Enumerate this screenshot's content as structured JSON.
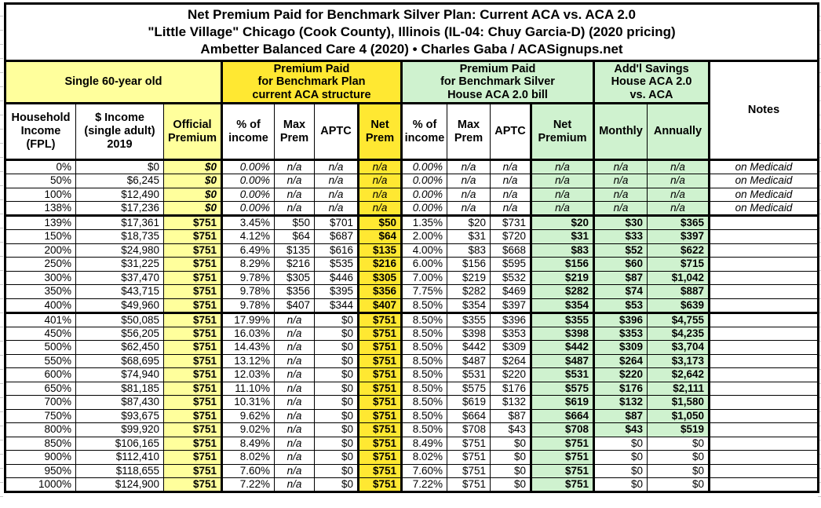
{
  "colors": {
    "pale_yellow": "#ffff9c",
    "bright_yellow": "#ffe832",
    "light_green": "#cff2cf",
    "border_black": "#000000",
    "gridline_gray": "#c9c9c9"
  },
  "chart_data": {
    "type": "table",
    "title_lines": [
      "Net Premium Paid for Benchmark Silver Plan: Current ACA vs. ACA 2.0",
      "\"Little Village\" Chicago (Cook County), Illinois (IL-04: Chuy Garcia-D) (2020 pricing)",
      "Ambetter Balanced Care 4 (2020) • Charles Gaba / ACASignups.net"
    ],
    "group_headers": {
      "subject": "Single 60-year old",
      "aca": "Premium Paid\nfor Benchmark Plan\ncurrent ACA structure",
      "aca2": "Premium Paid\nfor Benchmark Silver\nHouse ACA 2.0 bill",
      "savings": "Add'l Savings\nHouse ACA 2.0\nvs. ACA",
      "notes": "Notes"
    },
    "col_headers": [
      "Household\nIncome\n(FPL)",
      "$ Income\n(single adult)\n2019",
      "Official\nPremium",
      "% of\nincome",
      "Max\nPrem",
      "APTC",
      "Net\nPrem",
      "% of\nincome",
      "Max\nPrem",
      "APTC",
      "Net\nPremium",
      "Monthly",
      "Annually"
    ],
    "rows": [
      [
        "0%",
        "$0",
        "$0",
        "0.00%",
        "n/a",
        "n/a",
        "n/a",
        "0.00%",
        "n/a",
        "n/a",
        "n/a",
        "n/a",
        "n/a",
        "on Medicaid"
      ],
      [
        "50%",
        "$6,245",
        "$0",
        "0.00%",
        "n/a",
        "n/a",
        "n/a",
        "0.00%",
        "n/a",
        "n/a",
        "n/a",
        "n/a",
        "n/a",
        "on Medicaid"
      ],
      [
        "100%",
        "$12,490",
        "$0",
        "0.00%",
        "n/a",
        "n/a",
        "n/a",
        "0.00%",
        "n/a",
        "n/a",
        "n/a",
        "n/a",
        "n/a",
        "on Medicaid"
      ],
      [
        "138%",
        "$17,236",
        "$0",
        "0.00%",
        "n/a",
        "n/a",
        "n/a",
        "0.00%",
        "n/a",
        "n/a",
        "n/a",
        "n/a",
        "n/a",
        "on Medicaid"
      ],
      [
        "139%",
        "$17,361",
        "$751",
        "3.45%",
        "$50",
        "$701",
        "$50",
        "1.35%",
        "$20",
        "$731",
        "$20",
        "$30",
        "$365",
        ""
      ],
      [
        "150%",
        "$18,735",
        "$751",
        "4.12%",
        "$64",
        "$687",
        "$64",
        "2.00%",
        "$31",
        "$720",
        "$31",
        "$33",
        "$397",
        ""
      ],
      [
        "200%",
        "$24,980",
        "$751",
        "6.49%",
        "$135",
        "$616",
        "$135",
        "4.00%",
        "$83",
        "$668",
        "$83",
        "$52",
        "$622",
        ""
      ],
      [
        "250%",
        "$31,225",
        "$751",
        "8.29%",
        "$216",
        "$535",
        "$216",
        "6.00%",
        "$156",
        "$595",
        "$156",
        "$60",
        "$715",
        ""
      ],
      [
        "300%",
        "$37,470",
        "$751",
        "9.78%",
        "$305",
        "$446",
        "$305",
        "7.00%",
        "$219",
        "$532",
        "$219",
        "$87",
        "$1,042",
        ""
      ],
      [
        "350%",
        "$43,715",
        "$751",
        "9.78%",
        "$356",
        "$395",
        "$356",
        "7.75%",
        "$282",
        "$469",
        "$282",
        "$74",
        "$887",
        ""
      ],
      [
        "400%",
        "$49,960",
        "$751",
        "9.78%",
        "$407",
        "$344",
        "$407",
        "8.50%",
        "$354",
        "$397",
        "$354",
        "$53",
        "$639",
        ""
      ],
      [
        "401%",
        "$50,085",
        "$751",
        "17.99%",
        "n/a",
        "$0",
        "$751",
        "8.50%",
        "$355",
        "$396",
        "$355",
        "$396",
        "$4,755",
        ""
      ],
      [
        "450%",
        "$56,205",
        "$751",
        "16.03%",
        "n/a",
        "$0",
        "$751",
        "8.50%",
        "$398",
        "$353",
        "$398",
        "$353",
        "$4,235",
        ""
      ],
      [
        "500%",
        "$62,450",
        "$751",
        "14.43%",
        "n/a",
        "$0",
        "$751",
        "8.50%",
        "$442",
        "$309",
        "$442",
        "$309",
        "$3,704",
        ""
      ],
      [
        "550%",
        "$68,695",
        "$751",
        "13.12%",
        "n/a",
        "$0",
        "$751",
        "8.50%",
        "$487",
        "$264",
        "$487",
        "$264",
        "$3,173",
        ""
      ],
      [
        "600%",
        "$74,940",
        "$751",
        "12.03%",
        "n/a",
        "$0",
        "$751",
        "8.50%",
        "$531",
        "$220",
        "$531",
        "$220",
        "$2,642",
        ""
      ],
      [
        "650%",
        "$81,185",
        "$751",
        "11.10%",
        "n/a",
        "$0",
        "$751",
        "8.50%",
        "$575",
        "$176",
        "$575",
        "$176",
        "$2,111",
        ""
      ],
      [
        "700%",
        "$87,430",
        "$751",
        "10.31%",
        "n/a",
        "$0",
        "$751",
        "8.50%",
        "$619",
        "$132",
        "$619",
        "$132",
        "$1,580",
        ""
      ],
      [
        "750%",
        "$93,675",
        "$751",
        "9.62%",
        "n/a",
        "$0",
        "$751",
        "8.50%",
        "$664",
        "$87",
        "$664",
        "$87",
        "$1,050",
        ""
      ],
      [
        "800%",
        "$99,920",
        "$751",
        "9.02%",
        "n/a",
        "$0",
        "$751",
        "8.50%",
        "$708",
        "$43",
        "$708",
        "$43",
        "$519",
        ""
      ],
      [
        "850%",
        "$106,165",
        "$751",
        "8.49%",
        "n/a",
        "$0",
        "$751",
        "8.49%",
        "$751",
        "$0",
        "$751",
        "$0",
        "$0",
        ""
      ],
      [
        "900%",
        "$112,410",
        "$751",
        "8.02%",
        "n/a",
        "$0",
        "$751",
        "8.02%",
        "$751",
        "$0",
        "$751",
        "$0",
        "$0",
        ""
      ],
      [
        "950%",
        "$118,655",
        "$751",
        "7.60%",
        "n/a",
        "$0",
        "$751",
        "7.60%",
        "$751",
        "$0",
        "$751",
        "$0",
        "$0",
        ""
      ],
      [
        "1000%",
        "$124,900",
        "$751",
        "7.22%",
        "n/a",
        "$0",
        "$751",
        "7.22%",
        "$751",
        "$0",
        "$751",
        "$0",
        "$0",
        ""
      ]
    ],
    "section_breaks_after_fpl": [
      "138%",
      "400%"
    ],
    "medicaid_note": "on Medicaid"
  }
}
